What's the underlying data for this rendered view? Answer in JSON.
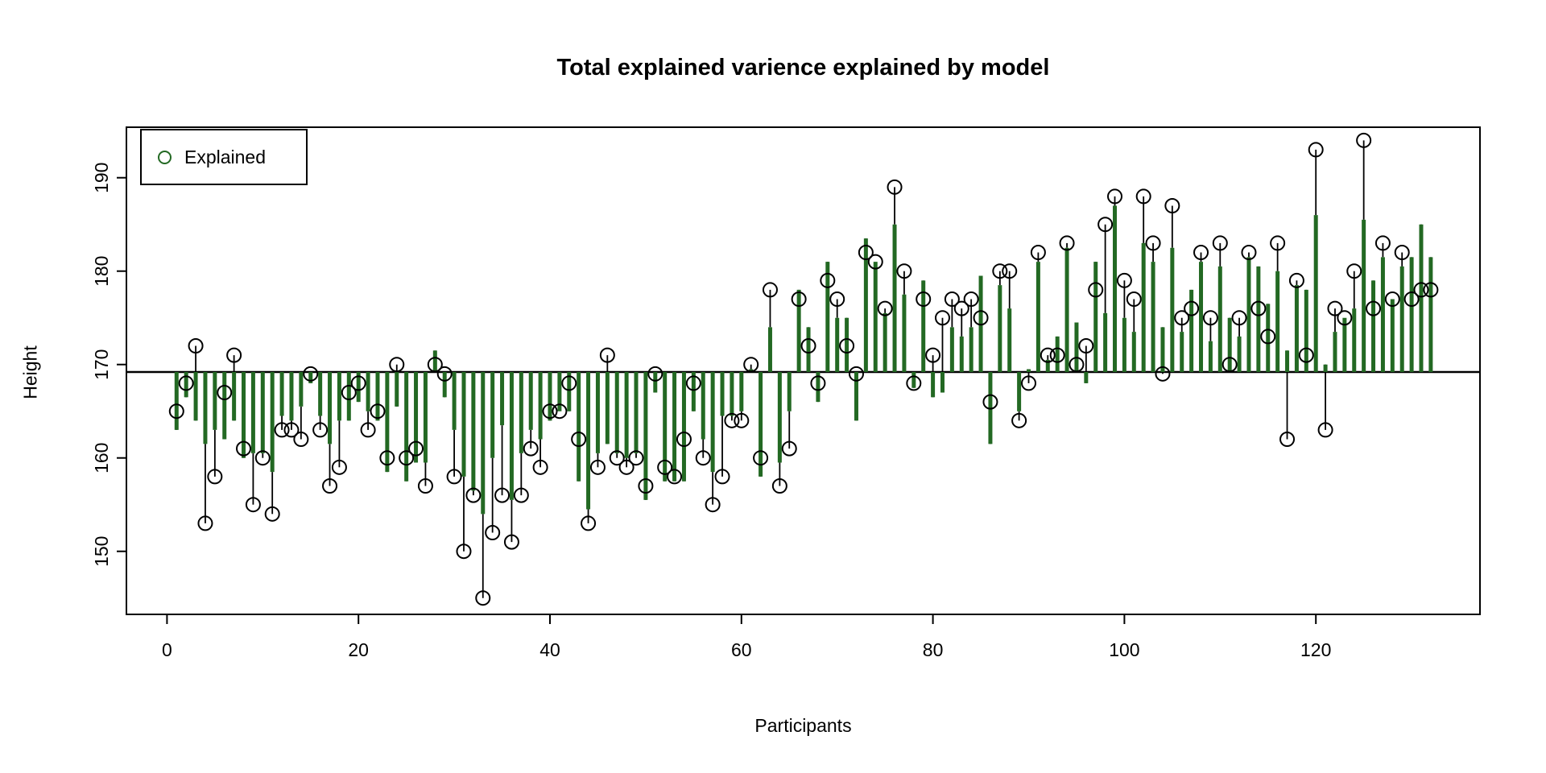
{
  "chart_data": {
    "type": "stem-scatter",
    "title": "Total explained varience explained by model",
    "xlabel": "Participants",
    "ylabel": "Height",
    "x_ticks": [
      0,
      20,
      40,
      60,
      80,
      100,
      120
    ],
    "y_ticks": [
      150,
      160,
      170,
      180,
      190
    ],
    "xlim": [
      -4,
      137
    ],
    "ylim": [
      143,
      195.5
    ],
    "baseline": 169.2,
    "grid": false,
    "legend": {
      "label": "Explained",
      "position": "topleft"
    },
    "colors": {
      "stem": "#236923",
      "marker": "#000000",
      "residual": "#000000",
      "axis": "#000000",
      "background": "#ffffff"
    },
    "n_participants": 132,
    "x": [
      1,
      2,
      3,
      4,
      5,
      6,
      7,
      8,
      9,
      10,
      11,
      12,
      13,
      14,
      15,
      16,
      17,
      18,
      19,
      20,
      21,
      22,
      23,
      24,
      25,
      26,
      27,
      28,
      29,
      30,
      31,
      32,
      33,
      34,
      35,
      36,
      37,
      38,
      39,
      40,
      41,
      42,
      43,
      44,
      45,
      46,
      47,
      48,
      49,
      50,
      51,
      52,
      53,
      54,
      55,
      56,
      57,
      58,
      59,
      60,
      61,
      62,
      63,
      64,
      65,
      66,
      67,
      68,
      69,
      70,
      71,
      72,
      73,
      74,
      75,
      76,
      77,
      78,
      79,
      80,
      81,
      82,
      83,
      84,
      85,
      86,
      87,
      88,
      89,
      90,
      91,
      92,
      93,
      94,
      95,
      96,
      97,
      98,
      99,
      100,
      101,
      102,
      103,
      104,
      105,
      106,
      107,
      108,
      109,
      110,
      111,
      112,
      113,
      114,
      115,
      116,
      117,
      118,
      119,
      120,
      121,
      122,
      123,
      124,
      125,
      126,
      127,
      128,
      129,
      130,
      131,
      132
    ],
    "series": [
      {
        "name": "observed_height_circles",
        "values": [
          165,
          168,
          172,
          153,
          158,
          167,
          171,
          161,
          155,
          160,
          154,
          163,
          163,
          162,
          169,
          163,
          157,
          159,
          167,
          168,
          163,
          165,
          160,
          170,
          160,
          161,
          157,
          170,
          169,
          158,
          150,
          156,
          145,
          152,
          156,
          151,
          156,
          161,
          159,
          165,
          165,
          168,
          162,
          153,
          159,
          171,
          160,
          159,
          160,
          157,
          169,
          159,
          158,
          162,
          168,
          160,
          155,
          158,
          164,
          164,
          170,
          160,
          178,
          157,
          161,
          177,
          172,
          168,
          179,
          177,
          172,
          169,
          182,
          181,
          176,
          189,
          180,
          168,
          177,
          171,
          175,
          177,
          176,
          177,
          175,
          166,
          180,
          180,
          164,
          168,
          182,
          171,
          171,
          183,
          170,
          172,
          178,
          185,
          188,
          179,
          177,
          188,
          183,
          169,
          187,
          175,
          176,
          182,
          175,
          183,
          170,
          175,
          182,
          176,
          173,
          183,
          162,
          179,
          171,
          193,
          163,
          176,
          175,
          180,
          194,
          176,
          183,
          177,
          182,
          177,
          178,
          178
        ]
      },
      {
        "name": "explained_green_stems",
        "values": [
          163,
          166.5,
          164,
          161.5,
          163,
          162,
          164,
          160,
          160.5,
          160.5,
          158.5,
          164.5,
          164,
          165.5,
          168,
          164.5,
          161.5,
          164,
          164,
          166,
          165,
          164,
          158.5,
          165.5,
          157.5,
          159.5,
          159.5,
          171.5,
          166.5,
          163,
          158,
          156.5,
          154,
          160,
          163.5,
          155.5,
          160.5,
          163,
          162,
          164,
          165,
          165,
          157.5,
          154.5,
          160.5,
          161.5,
          160.5,
          160,
          160.5,
          155.5,
          167,
          157.5,
          157.5,
          157.5,
          165,
          162,
          158.5,
          164.5,
          164.5,
          165,
          169.5,
          158,
          174,
          159.5,
          165,
          178,
          174,
          166,
          181,
          175,
          175,
          164,
          183.5,
          181,
          175.5,
          185,
          177.5,
          167.5,
          179,
          166.5,
          167,
          174,
          173,
          174,
          179.5,
          161.5,
          178.5,
          176,
          165,
          169.5,
          181,
          170.5,
          173,
          182.5,
          174.5,
          168,
          181,
          175.5,
          187,
          175,
          173.5,
          183,
          181,
          174,
          182.5,
          173.5,
          178,
          181,
          172.5,
          180.5,
          175,
          173,
          181.5,
          180.5,
          176.5,
          180,
          171.5,
          178.5,
          178,
          186,
          170,
          173.5,
          175,
          176,
          185.5,
          179,
          181.5,
          177,
          180.5,
          181.5,
          185,
          181.5
        ]
      }
    ]
  }
}
